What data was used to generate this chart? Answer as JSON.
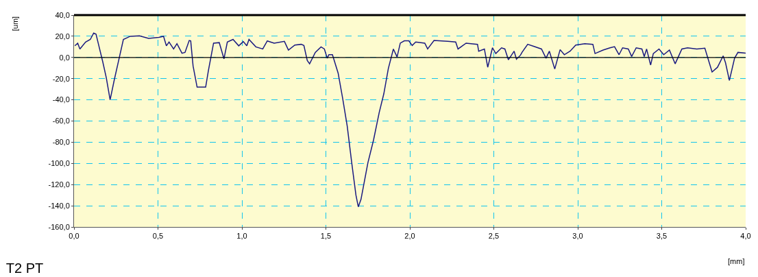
{
  "chart_data": {
    "type": "line",
    "title": "T2 PT",
    "xlabel": "[mm]",
    "ylabel": "[um]",
    "x": [
      0.005,
      0.022,
      0.035,
      0.069,
      0.097,
      0.117,
      0.131,
      0.144,
      0.171,
      0.192,
      0.215,
      0.24,
      0.267,
      0.294,
      0.335,
      0.39,
      0.444,
      0.505,
      0.533,
      0.55,
      0.566,
      0.593,
      0.613,
      0.643,
      0.661,
      0.686,
      0.695,
      0.709,
      0.733,
      0.784,
      0.8,
      0.831,
      0.865,
      0.893,
      0.913,
      0.947,
      0.981,
      1.008,
      1.029,
      1.042,
      1.083,
      1.124,
      1.151,
      1.192,
      1.253,
      1.277,
      1.315,
      1.353,
      1.369,
      1.389,
      1.403,
      1.437,
      1.471,
      1.491,
      1.508,
      1.518,
      1.539,
      1.573,
      1.6,
      1.627,
      1.654,
      1.679,
      1.693,
      1.709,
      1.75,
      1.784,
      1.818,
      1.845,
      1.872,
      1.902,
      1.924,
      1.943,
      1.967,
      1.994,
      2.014,
      2.035,
      2.089,
      2.106,
      2.144,
      2.226,
      2.273,
      2.287,
      2.335,
      2.403,
      2.41,
      2.444,
      2.464,
      2.492,
      2.512,
      2.546,
      2.566,
      2.587,
      2.621,
      2.635,
      2.659,
      2.668,
      2.702,
      2.743,
      2.784,
      2.811,
      2.831,
      2.863,
      2.895,
      2.92,
      2.954,
      2.988,
      3.042,
      3.09,
      3.103,
      3.151,
      3.192,
      3.219,
      3.246,
      3.267,
      3.301,
      3.321,
      3.348,
      3.382,
      3.396,
      3.41,
      3.434,
      3.45,
      3.484,
      3.512,
      3.546,
      3.58,
      3.62,
      3.654,
      3.709,
      3.757,
      3.777,
      3.8,
      3.832,
      3.866,
      3.88,
      3.903,
      3.934,
      3.954,
      4.0
    ],
    "series": [
      {
        "color": "#1a1a80",
        "values": [
          11,
          13.5,
          8,
          14.6,
          17,
          23,
          22,
          13.5,
          -4,
          -19,
          -40,
          -21,
          -2,
          17,
          20,
          20.4,
          18,
          19,
          20,
          11,
          14.6,
          8,
          13,
          4,
          4.8,
          16,
          15.6,
          -8,
          -28,
          -28,
          -12.6,
          13.5,
          14,
          -1.3,
          14.6,
          17,
          11,
          15,
          11,
          17,
          10,
          8,
          15.6,
          13.5,
          15.2,
          7,
          11.7,
          12.4,
          11.3,
          -2.8,
          -6,
          4.8,
          10,
          8,
          -0.7,
          2.6,
          2.6,
          -14.8,
          -38.7,
          -64.8,
          -99.6,
          -130,
          -141,
          -134,
          -99.6,
          -77.8,
          -51.7,
          -34.3,
          -10.4,
          8,
          0.4,
          13.5,
          15.7,
          15.7,
          11.3,
          14.6,
          13.5,
          8,
          16,
          15.2,
          14.6,
          8,
          13.5,
          12.4,
          5.9,
          8,
          -9.3,
          9.1,
          3.7,
          9.1,
          8,
          -2.2,
          5.9,
          -1.7,
          2.2,
          4.8,
          12.4,
          10.2,
          8,
          -0.7,
          5.9,
          -10.9,
          7.4,
          2.6,
          5.9,
          11.7,
          13,
          12.4,
          3.7,
          7,
          9.1,
          10.2,
          2.6,
          9.1,
          8,
          0.9,
          9.1,
          8,
          0.9,
          8,
          -7.2,
          3.7,
          8,
          2.6,
          7,
          -6,
          8,
          9.1,
          8,
          8.7,
          -1.7,
          -13.7,
          -9.3,
          1.5,
          -5,
          -21.7,
          -0.7,
          4.8,
          4.1
        ]
      }
    ],
    "xlim": [
      0,
      4
    ],
    "xticks": [
      {
        "value": 0,
        "label": "0,0"
      },
      {
        "value": 0.5,
        "label": "0,5"
      },
      {
        "value": 1,
        "label": "1,0"
      },
      {
        "value": 1.5,
        "label": "1,5"
      },
      {
        "value": 2,
        "label": "2,0"
      },
      {
        "value": 2.5,
        "label": "2,5"
      },
      {
        "value": 3,
        "label": "3,0"
      },
      {
        "value": 3.5,
        "label": "3,5"
      },
      {
        "value": 4,
        "label": "4,0"
      }
    ],
    "ylim": [
      -160,
      40
    ],
    "yticks": [
      {
        "value": -160,
        "label": "-160,0"
      },
      {
        "value": -140,
        "label": "-140,0"
      },
      {
        "value": -120,
        "label": "-120,0"
      },
      {
        "value": -100,
        "label": "-100,0"
      },
      {
        "value": -80,
        "label": "-80,0"
      },
      {
        "value": -60,
        "label": "-60,0"
      },
      {
        "value": -40,
        "label": "-40,0"
      },
      {
        "value": -20,
        "label": "-20,0"
      },
      {
        "value": 0,
        "label": "0,0"
      },
      {
        "value": 20,
        "label": "20,0"
      },
      {
        "value": 40,
        "label": "40,0"
      }
    ],
    "ref_lines": [
      {
        "axis": "y",
        "value": 0,
        "color": "#000000"
      }
    ],
    "grid": true,
    "marker": "none",
    "line_style": "solid"
  }
}
